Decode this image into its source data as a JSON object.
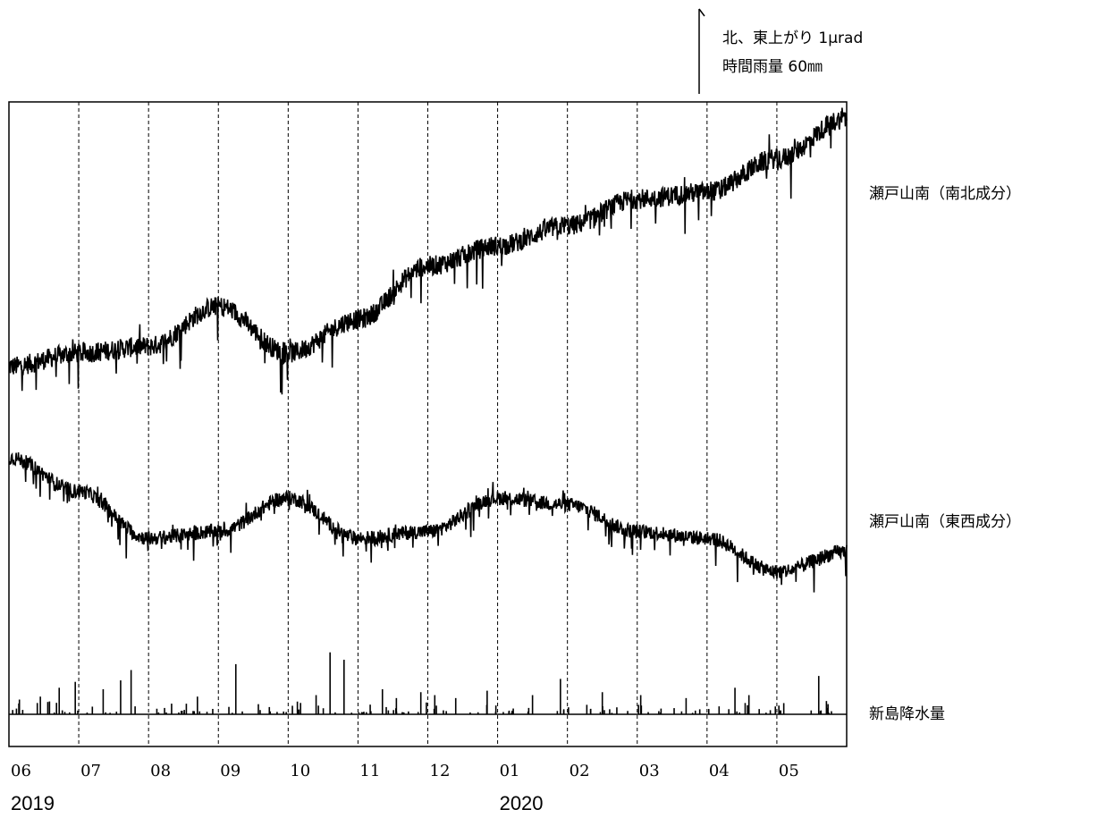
{
  "chart_data": {
    "type": "line",
    "scale_note": {
      "line1": "北、東上がり 1μrad",
      "line2": "時間雨量 60㎜"
    },
    "months": [
      "06",
      "07",
      "08",
      "09",
      "10",
      "11",
      "12",
      "01",
      "02",
      "03",
      "04",
      "05"
    ],
    "years": [
      {
        "label": "2019",
        "month_index": 0
      },
      {
        "label": "2020",
        "month_index": 7
      }
    ],
    "grid": "vertical dashed lines at month boundaries",
    "colors": {
      "line": "#000000",
      "grid": "#000000",
      "background": "#ffffff"
    },
    "series": [
      {
        "name": "瀬戸山南（南北成分）",
        "unit": "μrad",
        "month_values": [
          0.0,
          0.1,
          0.15,
          0.45,
          0.1,
          0.35,
          0.75,
          0.9,
          1.05,
          1.25,
          1.3,
          1.55,
          1.85
        ],
        "noise": 0.25
      },
      {
        "name": "瀬戸山南（東西成分）",
        "unit": "μrad",
        "month_values": [
          0.0,
          -0.25,
          -0.6,
          -0.55,
          -0.3,
          -0.6,
          -0.55,
          -0.3,
          -0.35,
          -0.55,
          -0.6,
          -0.85,
          -0.7
        ],
        "noise": 0.18
      },
      {
        "name": "新島降水量",
        "unit": "mm/h",
        "kind": "bars",
        "peaks": [
          {
            "month": 0.15,
            "value": 10
          },
          {
            "month": 0.45,
            "value": 12
          },
          {
            "month": 0.72,
            "value": 18
          },
          {
            "month": 0.95,
            "value": 22
          },
          {
            "month": 1.35,
            "value": 17
          },
          {
            "month": 1.6,
            "value": 23
          },
          {
            "month": 1.75,
            "value": 30
          },
          {
            "month": 2.7,
            "value": 12
          },
          {
            "month": 3.25,
            "value": 34
          },
          {
            "month": 4.4,
            "value": 13
          },
          {
            "month": 4.6,
            "value": 42
          },
          {
            "month": 4.8,
            "value": 37
          },
          {
            "month": 5.35,
            "value": 17
          },
          {
            "month": 5.55,
            "value": 11
          },
          {
            "month": 5.9,
            "value": 15
          },
          {
            "month": 6.1,
            "value": 13
          },
          {
            "month": 6.4,
            "value": 11
          },
          {
            "month": 6.85,
            "value": 16
          },
          {
            "month": 7.5,
            "value": 13
          },
          {
            "month": 7.9,
            "value": 24
          },
          {
            "month": 8.5,
            "value": 15
          },
          {
            "month": 9.05,
            "value": 13
          },
          {
            "month": 9.7,
            "value": 11
          },
          {
            "month": 10.4,
            "value": 18
          },
          {
            "month": 10.6,
            "value": 13
          },
          {
            "month": 11.6,
            "value": 26
          }
        ]
      }
    ]
  }
}
